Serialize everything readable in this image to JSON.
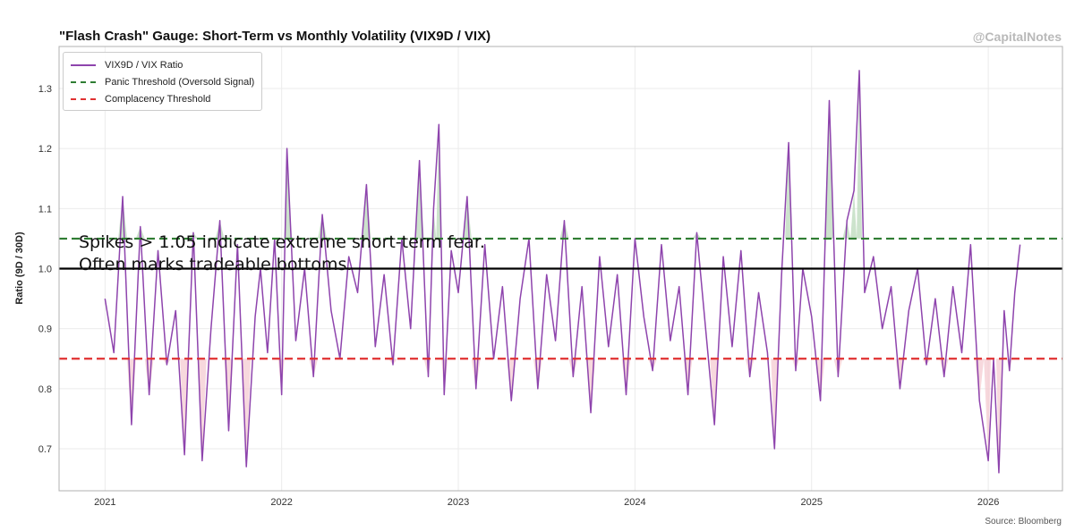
{
  "header": {
    "title": "\"Flash Crash\" Gauge: Short-Term vs Monthly Volatility (VIX9D / VIX)",
    "watermark": "@CapitalNotes",
    "source": "Source: Bloomberg"
  },
  "colors": {
    "ratio_line": "#8e44ad",
    "panic": "#2e7d32",
    "complacency": "#e03131",
    "baseline": "#000000",
    "grid": "#ebebeb",
    "panic_fill": "#b7d7b7",
    "complacency_fill": "#f4c8cf"
  },
  "legend": {
    "items": [
      {
        "label": "VIX9D / VIX Ratio",
        "color": "#8e44ad",
        "style": "solid"
      },
      {
        "label": "Panic Threshold (Oversold Signal)",
        "color": "#2e7d32",
        "style": "dashed"
      },
      {
        "label": "Complacency Threshold",
        "color": "#e03131",
        "style": "dashed"
      }
    ]
  },
  "annotation": {
    "line1": "Spikes > 1.05 indicate extreme short-term fear.",
    "line2": "Often marks tradeable bottoms."
  },
  "chart_data": {
    "type": "line",
    "title": "\"Flash Crash\" Gauge: Short-Term vs Monthly Volatility (VIX9D / VIX)",
    "xlabel": "",
    "ylabel": "Ratio (9D / 30D)",
    "xlim": [
      2020.74,
      2026.42
    ],
    "ylim": [
      0.63,
      1.37
    ],
    "xticks": [
      2021,
      2022,
      2023,
      2024,
      2025,
      2026
    ],
    "xtick_labels": [
      "2021",
      "2022",
      "2023",
      "2024",
      "2025",
      "2026"
    ],
    "yticks": [
      0.7,
      0.8,
      0.9,
      1.0,
      1.1,
      1.2,
      1.3
    ],
    "ytick_labels": [
      "0.7",
      "0.8",
      "0.9",
      "1.0",
      "1.1",
      "1.2",
      "1.3"
    ],
    "grid": true,
    "legend_position": "top-left",
    "hlines": [
      {
        "name": "Panic Threshold (Oversold Signal)",
        "y": 1.05,
        "style": "dashed"
      },
      {
        "name": "Complacency Threshold",
        "y": 0.85,
        "style": "dashed"
      },
      {
        "name": "Baseline",
        "y": 1.0,
        "style": "solid"
      }
    ],
    "series": [
      {
        "name": "VIX9D / VIX Ratio",
        "x": [
          2021.0,
          2021.05,
          2021.1,
          2021.15,
          2021.2,
          2021.25,
          2021.3,
          2021.35,
          2021.4,
          2021.45,
          2021.5,
          2021.55,
          2021.6,
          2021.65,
          2021.7,
          2021.75,
          2021.8,
          2021.85,
          2021.88,
          2021.92,
          2021.96,
          2022.0,
          2022.03,
          2022.08,
          2022.13,
          2022.18,
          2022.23,
          2022.28,
          2022.33,
          2022.38,
          2022.43,
          2022.48,
          2022.53,
          2022.58,
          2022.63,
          2022.68,
          2022.73,
          2022.78,
          2022.83,
          2022.86,
          2022.89,
          2022.92,
          2022.96,
          2023.0,
          2023.05,
          2023.1,
          2023.15,
          2023.2,
          2023.25,
          2023.3,
          2023.35,
          2023.4,
          2023.45,
          2023.5,
          2023.55,
          2023.6,
          2023.65,
          2023.7,
          2023.75,
          2023.8,
          2023.85,
          2023.9,
          2023.95,
          2024.0,
          2024.05,
          2024.1,
          2024.15,
          2024.2,
          2024.25,
          2024.3,
          2024.35,
          2024.4,
          2024.45,
          2024.5,
          2024.55,
          2024.6,
          2024.65,
          2024.7,
          2024.75,
          2024.79,
          2024.83,
          2024.87,
          2024.91,
          2024.95,
          2025.0,
          2025.05,
          2025.1,
          2025.15,
          2025.2,
          2025.24,
          2025.27,
          2025.3,
          2025.35,
          2025.4,
          2025.45,
          2025.5,
          2025.55,
          2025.6,
          2025.65,
          2025.7,
          2025.75,
          2025.8,
          2025.85,
          2025.9,
          2025.95,
          2026.0,
          2026.03,
          2026.06,
          2026.09,
          2026.12,
          2026.15,
          2026.18
        ],
        "values": [
          0.95,
          0.86,
          1.12,
          0.74,
          1.07,
          0.79,
          1.03,
          0.84,
          0.93,
          0.69,
          1.06,
          0.68,
          0.9,
          1.08,
          0.73,
          1.04,
          0.67,
          0.92,
          1.0,
          0.86,
          1.05,
          0.79,
          1.2,
          0.88,
          1.0,
          0.82,
          1.09,
          0.93,
          0.85,
          1.02,
          0.96,
          1.14,
          0.87,
          0.99,
          0.84,
          1.05,
          0.9,
          1.18,
          0.82,
          1.1,
          1.24,
          0.79,
          1.03,
          0.96,
          1.12,
          0.8,
          1.04,
          0.85,
          0.97,
          0.78,
          0.95,
          1.05,
          0.8,
          0.99,
          0.88,
          1.08,
          0.82,
          0.97,
          0.76,
          1.02,
          0.87,
          0.99,
          0.79,
          1.05,
          0.92,
          0.83,
          1.04,
          0.88,
          0.97,
          0.79,
          1.06,
          0.9,
          0.74,
          1.02,
          0.87,
          1.03,
          0.82,
          0.96,
          0.86,
          0.7,
          0.99,
          1.21,
          0.83,
          1.0,
          0.92,
          0.78,
          1.28,
          0.82,
          1.08,
          1.13,
          1.33,
          0.96,
          1.02,
          0.9,
          0.97,
          0.8,
          0.93,
          1.0,
          0.84,
          0.95,
          0.82,
          0.97,
          0.86,
          1.04,
          0.78,
          0.68,
          0.85,
          0.66,
          0.93,
          0.83,
          0.96,
          1.04
        ]
      }
    ]
  }
}
